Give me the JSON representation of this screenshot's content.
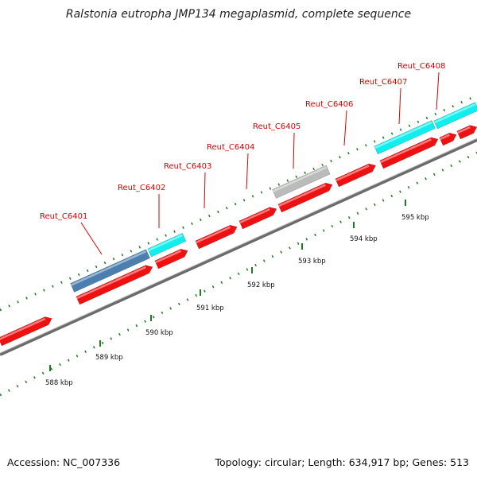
{
  "title": "Ralstonia eutropha JMP134 megaplasmid, complete sequence",
  "footer": {
    "accession": "Accession: NC_007336",
    "summary": "Topology: circular; Length: 634,917 bp; Genes: 513"
  },
  "colors": {
    "cds_forward": "#ee1111",
    "highlight_cyan": "#11eeee",
    "highlight_blue": "#4a7fb0",
    "highlight_gray": "#bbbbbb",
    "label": "#dd0000",
    "tick": "#1f7a1f",
    "backbone": "#888888"
  },
  "scale_labels": [
    "588 kbp",
    "589 kbp",
    "590 kbp",
    "591 kbp",
    "592 kbp",
    "593 kbp",
    "594 kbp",
    "595 kbp"
  ],
  "gene_labels": [
    "Reut_C6401",
    "Reut_C6402",
    "Reut_C6403",
    "Reut_C6404",
    "Reut_C6405",
    "Reut_C6406",
    "Reut_C6407",
    "Reut_C6408"
  ]
}
